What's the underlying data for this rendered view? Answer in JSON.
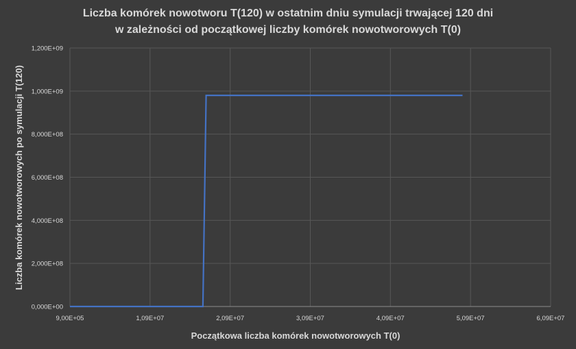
{
  "chart_data": {
    "type": "line",
    "title_line1": "Liczba komórek nowotworu T(120) w ostatnim dniu symulacji trwającej 120 dni",
    "title_line2": "w zależności od początkowej liczby komórek nowotworowych T(0)",
    "xlabel": "Początkowa liczba komórek nowotworowych T(0)",
    "ylabel": "Liczba komórek nowotworowych po symulacji T(120)",
    "xlim": [
      900000,
      60900000
    ],
    "ylim": [
      0,
      1200000000
    ],
    "x_ticks": [
      900000,
      10900000,
      20900000,
      30900000,
      40900000,
      50900000,
      60900000
    ],
    "x_tick_labels": [
      "9,00E+05",
      "1,09E+07",
      "2,09E+07",
      "3,09E+07",
      "4,09E+07",
      "5,09E+07",
      "6,09E+07"
    ],
    "y_ticks": [
      0,
      200000000,
      400000000,
      600000000,
      800000000,
      1000000000,
      1200000000
    ],
    "y_tick_labels": [
      "0,000E+00",
      "2,000E+08",
      "4,000E+08",
      "6,000E+08",
      "8,000E+08",
      "1,000E+09",
      "1,200E+09"
    ],
    "grid": true,
    "legend": "none",
    "series": [
      {
        "color": "#4472c4",
        "x": [
          900000,
          17500000,
          17900000,
          49900000
        ],
        "y": [
          0,
          0,
          980000000,
          980000000
        ]
      }
    ]
  }
}
